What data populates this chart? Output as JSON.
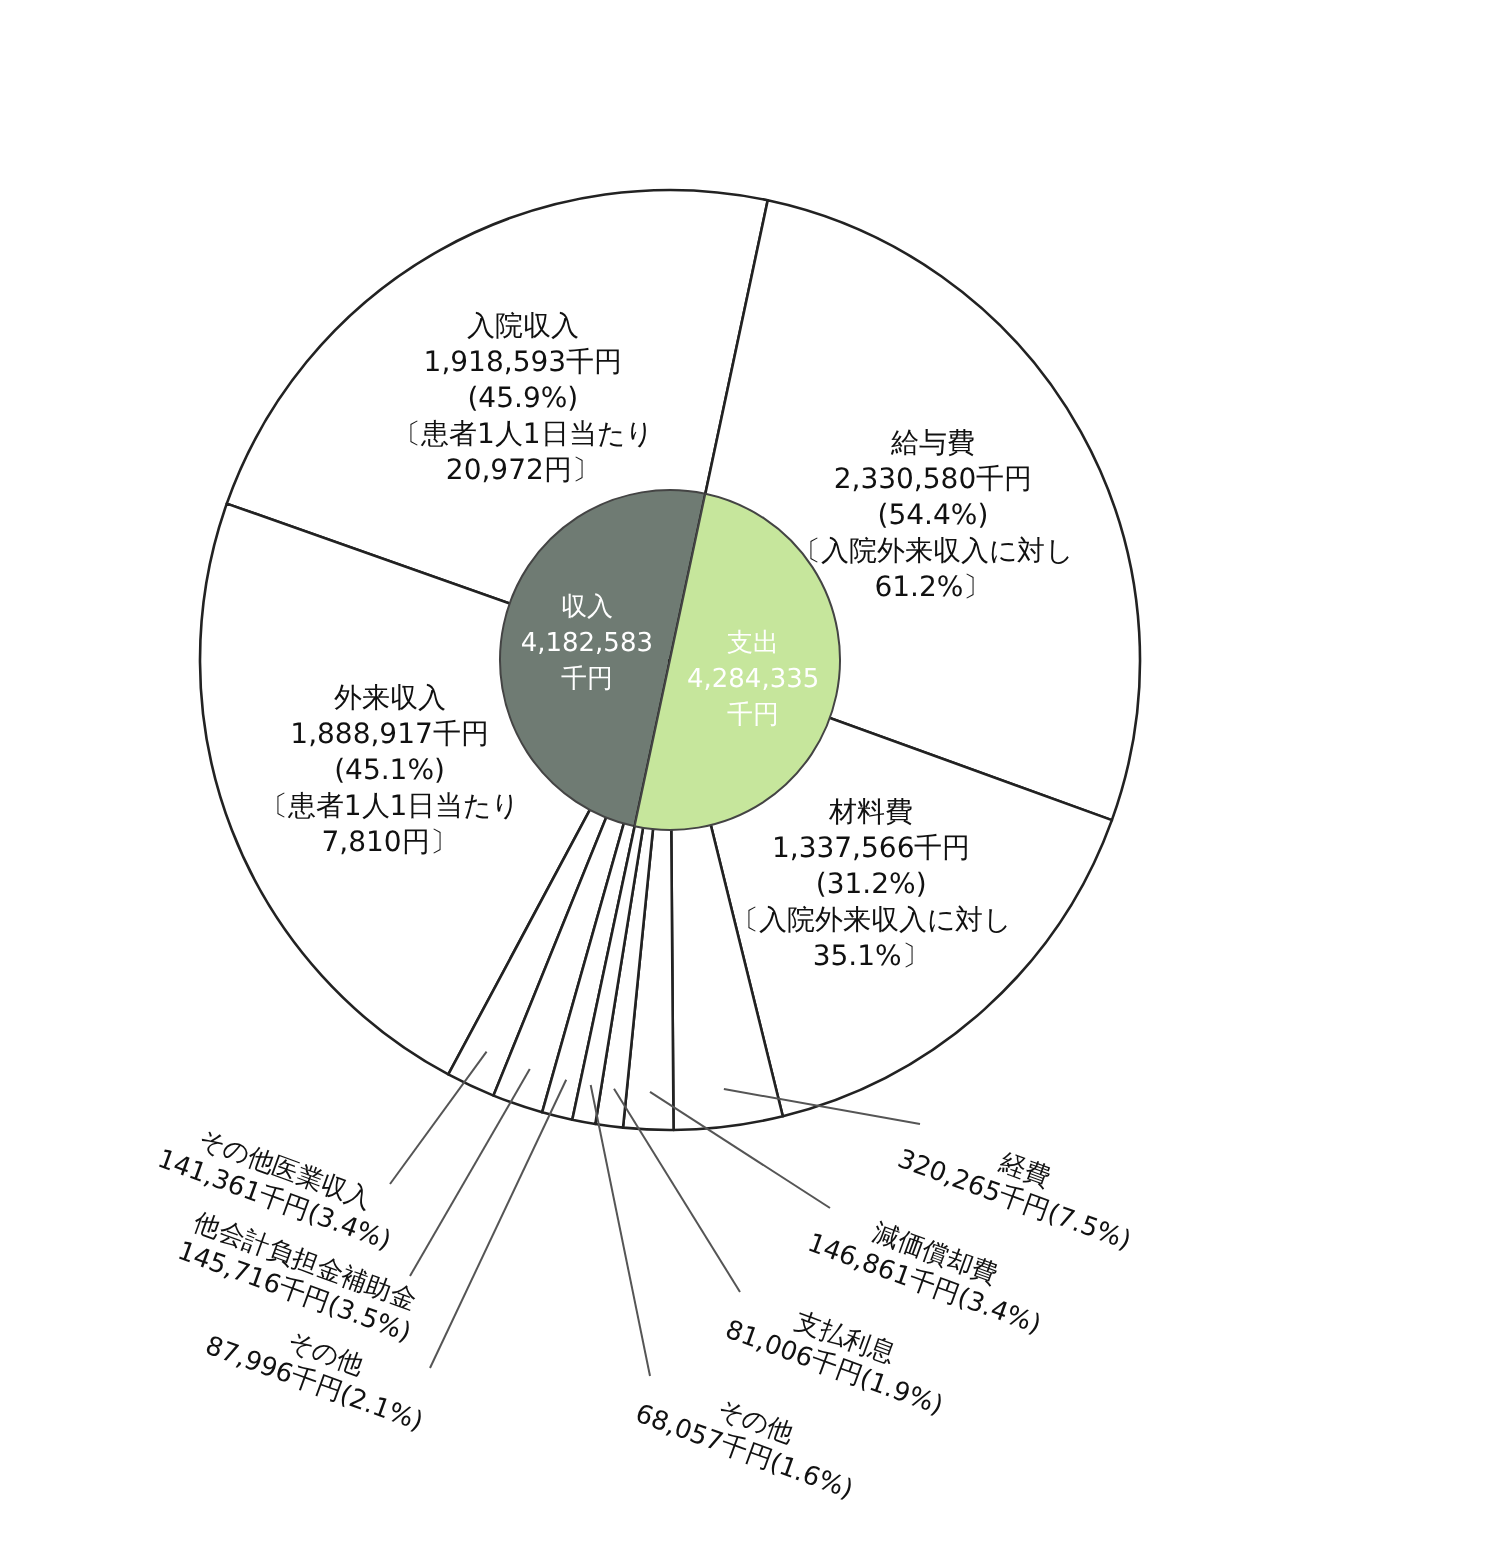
{
  "chart_data": [
    {
      "type": "pie",
      "title": "収入",
      "subtitle": "4,182,583千円",
      "categories": [
        "入院収入",
        "外来収入",
        "その他医業収入",
        "他会計負担金補助金",
        "その他"
      ],
      "values": [
        1918593,
        1888917,
        141361,
        145716,
        87996
      ],
      "value_labels": [
        "1,918,593千円\n(45.9%)",
        "1,888,917千円\n(45.1%)",
        "141,361千円(3.4%)",
        "145,716千円(3.5%)",
        "87,996千円(2.1%)"
      ],
      "colors": [
        "#ffffff",
        "#ffffff",
        "#ffffff",
        "#ffffff",
        "#ffffff"
      ],
      "annotations": [
        "〔患者1人1日当たり\n20,972円〕",
        "〔患者1人1日当たり\n7,810円〕"
      ]
    },
    {
      "type": "pie",
      "title": "支出",
      "subtitle": "4,284,335千円",
      "categories": [
        "給与費",
        "材料費",
        "経費",
        "減価償却費",
        "支払利息",
        "その他"
      ],
      "values": [
        2330580,
        1337566,
        320265,
        146861,
        81006,
        68057
      ],
      "value_labels": [
        "2,330,580千円\n(54.4%)",
        "1,337,566千円\n(31.2%)",
        "320,265千円(7.5%)",
        "146,861千円(3.4%)",
        "81,006千円(1.9%)",
        "68,057千円(1.6%)"
      ],
      "colors": [
        "#ffffff",
        "#ffffff",
        "#ffffff",
        "#ffffff",
        "#ffffff",
        "#ffffff"
      ],
      "annotations": [
        "〔入院外来収入に対し\n61.2%〕",
        "〔入院外来収入に対し\n35.1%〕"
      ]
    }
  ]
}
